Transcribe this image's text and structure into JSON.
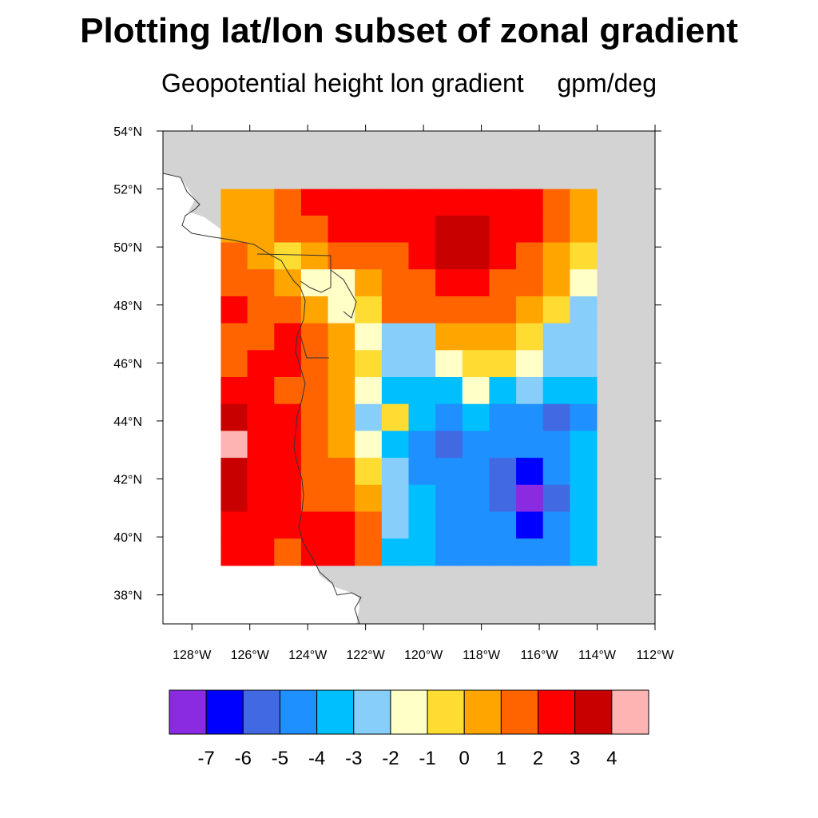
{
  "title": "Plotting lat/lon subset of zonal gradient",
  "subtitle_left": "Geopotential height lon gradient",
  "subtitle_right": "gpm/deg",
  "map": {
    "lon_range": [
      -129,
      -112
    ],
    "lat_range": [
      37,
      54
    ],
    "data_lon_range": [
      -127,
      -114
    ],
    "data_lat_range": [
      39,
      52
    ],
    "background_color": "#d3d3d3",
    "land_outline": true
  },
  "chart_data": {
    "type": "heatmap",
    "title": "Plotting lat/lon subset of zonal gradient",
    "xlabel": "",
    "ylabel": "",
    "x_ticks": [
      "128°W",
      "126°W",
      "124°W",
      "122°W",
      "120°W",
      "118°W",
      "116°W",
      "114°W",
      "112°W"
    ],
    "y_ticks": [
      "38°N",
      "40°N",
      "42°N",
      "44°N",
      "46°N",
      "48°N",
      "50°N",
      "52°N",
      "54°N"
    ],
    "x_tick_values": [
      -128,
      -126,
      -124,
      -122,
      -120,
      -118,
      -116,
      -114,
      -112
    ],
    "y_tick_values": [
      38,
      40,
      42,
      44,
      46,
      48,
      50,
      52,
      54
    ],
    "colorbar": {
      "labels": [
        "-7",
        "-6",
        "-5",
        "-4",
        "-3",
        "-2",
        "-1",
        "0",
        "1",
        "2",
        "3",
        "4"
      ],
      "levels": [
        -7,
        -6,
        -5,
        -4,
        -3,
        -2,
        -1,
        0,
        1,
        2,
        3,
        4
      ],
      "colors": [
        "#8a2be2",
        "#0000ff",
        "#4169e1",
        "#1e90ff",
        "#00bfff",
        "#87cefa",
        "#ffffc8",
        "#ffdc32",
        "#ffa500",
        "#ff6400",
        "#ff0000",
        "#c80000",
        "#ffb4b4"
      ]
    },
    "grid_lon": [
      -127,
      -126,
      -125,
      -124,
      -123,
      -122,
      -121,
      -120,
      -119,
      -118,
      -117,
      -116,
      -115,
      -114
    ],
    "grid_lat": [
      52,
      51,
      50,
      49,
      48,
      47,
      46,
      45,
      44,
      43,
      42,
      41,
      40,
      39
    ],
    "values": [
      [
        0.5,
        0.5,
        1.5,
        2.5,
        2.5,
        2.5,
        2.5,
        2.5,
        2.5,
        2.5,
        2.5,
        2.5,
        1.5,
        0.5
      ],
      [
        0.5,
        0.5,
        1.5,
        1.5,
        2.5,
        2.5,
        2.5,
        2.5,
        3.5,
        3.5,
        2.5,
        2.5,
        1.5,
        0.5
      ],
      [
        1.5,
        0.5,
        -0.5,
        0.5,
        1.5,
        1.5,
        1.5,
        2.5,
        3.5,
        3.5,
        2.5,
        1.5,
        0.5,
        -0.5
      ],
      [
        1.5,
        1.5,
        0.5,
        -1.5,
        -1.5,
        0.5,
        1.5,
        1.5,
        2.5,
        2.5,
        1.5,
        1.5,
        0.5,
        -1.5
      ],
      [
        2.5,
        1.5,
        1.5,
        0.5,
        -1.5,
        -0.5,
        1.5,
        1.5,
        1.5,
        1.5,
        1.5,
        0.5,
        -0.5,
        -2.5
      ],
      [
        1.5,
        1.5,
        2.5,
        1.5,
        0.5,
        -1.5,
        -2.5,
        -2.5,
        0.5,
        0.5,
        0.5,
        -0.5,
        -2.5,
        -2.5
      ],
      [
        1.5,
        2.5,
        2.5,
        1.5,
        0.5,
        -0.5,
        -2.5,
        -2.5,
        -1.5,
        -0.5,
        -0.5,
        -1.5,
        -2.5,
        -2.5
      ],
      [
        2.5,
        2.5,
        1.5,
        1.5,
        0.5,
        -1.5,
        -3.5,
        -3.5,
        -3.5,
        -1.5,
        -3.5,
        -2.5,
        -3.5,
        -3.5
      ],
      [
        3.5,
        2.5,
        2.5,
        1.5,
        0.5,
        -2.5,
        -0.5,
        -3.5,
        -4.5,
        -3.5,
        -4.5,
        -4.5,
        -5.5,
        -4.5
      ],
      [
        4.5,
        2.5,
        2.5,
        1.5,
        0.5,
        -1.5,
        -3.5,
        -4.5,
        -5.5,
        -4.5,
        -4.5,
        -4.5,
        -4.5,
        -3.5
      ],
      [
        3.5,
        2.5,
        2.5,
        1.5,
        1.5,
        -0.5,
        -2.5,
        -4.5,
        -4.5,
        -4.5,
        -5.5,
        -6.5,
        -4.5,
        -3.5
      ],
      [
        3.5,
        2.5,
        2.5,
        1.5,
        1.5,
        0.5,
        -2.5,
        -3.5,
        -4.5,
        -4.5,
        -5.5,
        -7.5,
        -5.5,
        -3.5
      ],
      [
        2.5,
        2.5,
        2.5,
        2.5,
        2.5,
        1.5,
        -2.5,
        -3.5,
        -4.5,
        -4.5,
        -4.5,
        -6.5,
        -4.5,
        -3.5
      ],
      [
        2.5,
        2.5,
        1.5,
        2.5,
        2.5,
        1.5,
        -3.5,
        -3.5,
        -4.5,
        -4.5,
        -4.5,
        -4.5,
        -4.5,
        -3.5
      ]
    ]
  }
}
